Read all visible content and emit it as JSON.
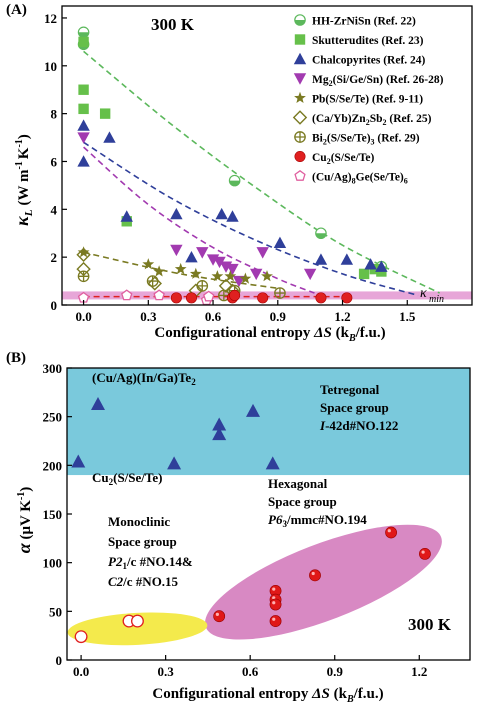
{
  "figure": {
    "panelA": {
      "label": "(A)",
      "temperature": "300 K",
      "kmin_label": "κ",
      "kmin_sub": "min",
      "ylabel": "κ",
      "ylabel_sub": "L",
      "ylabel_unit": "(W m",
      "ylabel_exp1": "-1",
      "ylabel_mid": "K",
      "ylabel_exp2": "-1",
      "ylabel_close": ")",
      "xlabel_main": "Configurational entropy ",
      "xlabel_sym": "ΔS",
      "xlabel_open": " (k",
      "xlabel_sub": "B",
      "xlabel_close": "/f.u.)",
      "legend": [
        {
          "text": "HH-ZrNiSn (Ref. 22)",
          "marker": "halfcircle",
          "color": "#5cb85c"
        },
        {
          "text": "Skutterudites (Ref. 23)",
          "marker": "square",
          "color": "#66c04a"
        },
        {
          "text": "Chalcopyrites (Ref. 24)",
          "marker": "triangle",
          "color": "#2f3f9a"
        },
        {
          "text_parts": [
            "Mg",
            "2",
            "(Si/Ge/Sn) (Ref. 26-28)"
          ],
          "marker": "invtriangle",
          "color": "#a23ab0"
        },
        {
          "text": "Pb(S/Se/Te) (Ref. 9-11)",
          "marker": "star",
          "color": "#7a7a22"
        },
        {
          "text_parts": [
            "(Ca/Yb)Zn",
            "2",
            "Sb",
            "2",
            " (Ref. 25)"
          ],
          "marker": "diamond",
          "color": "#7a7a22"
        },
        {
          "text_parts": [
            "Bi",
            "2",
            "(S/Se/Te)",
            "3",
            " (Ref. 29)"
          ],
          "marker": "crosscircle",
          "color": "#7a7a22"
        },
        {
          "text_parts": [
            "Cu",
            "2",
            "(S/Se/Te)"
          ],
          "marker": "circle",
          "color": "#e02020"
        },
        {
          "text_parts": [
            "(Cu/Ag)",
            "8",
            "Ge(Se/Te)",
            "6"
          ],
          "marker": "pentagon",
          "color": "#e060a0"
        }
      ]
    },
    "panelB": {
      "label": "(B)",
      "temperature": "300 K",
      "ylabel_sym": "α",
      "ylabel_unit": " (μV K",
      "ylabel_exp": "-1",
      "ylabel_close": ")",
      "xlabel_main": "Configurational entropy ",
      "xlabel_sym": "ΔS",
      "xlabel_open": " (k",
      "xlabel_sub": "B",
      "xlabel_close": "/f.u.)",
      "compound_top_parts": [
        "(Cu/Ag)(In/Ga)Te",
        "2"
      ],
      "compound_mid_parts": [
        "Cu",
        "2",
        "(S/Se/Te)"
      ],
      "tetragonal": [
        "Tetregonal",
        "Space group",
        "I",
        "-42d#NO.122"
      ],
      "hexagonal": [
        "Hexagonal",
        "Space group",
        "P6",
        "3",
        "/mmc#NO.194"
      ],
      "monoclinic": [
        "Monoclinic",
        "Space group",
        "P2",
        "1",
        "/c #NO.14&",
        "C2",
        "/c #NO.15"
      ]
    }
  },
  "chart_data": [
    {
      "type": "scatter",
      "title": "300 K",
      "xlabel": "Configurational entropy ΔS (kB/f.u.)",
      "ylabel": "κL (W m-1 K-1)",
      "xlim": [
        -0.1,
        1.8
      ],
      "ylim": [
        0,
        12.5
      ],
      "xticks": [
        0.0,
        0.3,
        0.6,
        0.9,
        1.2,
        1.5
      ],
      "yticks": [
        0,
        2,
        4,
        6,
        8,
        10,
        12
      ],
      "kmin": 0.4,
      "series": [
        {
          "name": "HH-ZrNiSn (Ref. 22)",
          "points": [
            [
              0.0,
              11.4
            ],
            [
              0.0,
              10.9
            ],
            [
              0.7,
              5.2
            ],
            [
              1.1,
              3.0
            ],
            [
              1.38,
              1.6
            ]
          ]
        },
        {
          "name": "Skutterudites (Ref. 23)",
          "points": [
            [
              0.0,
              11.0
            ],
            [
              0.0,
              9.0
            ],
            [
              0.0,
              8.2
            ],
            [
              0.1,
              8.0
            ],
            [
              0.2,
              3.5
            ],
            [
              1.3,
              1.3
            ],
            [
              1.35,
              1.5
            ],
            [
              1.38,
              1.4
            ]
          ]
        },
        {
          "name": "Chalcopyrites (Ref. 24)",
          "points": [
            [
              0.0,
              7.5
            ],
            [
              0.0,
              6.0
            ],
            [
              0.12,
              7.0
            ],
            [
              0.2,
              3.7
            ],
            [
              0.43,
              3.8
            ],
            [
              0.5,
              2.0
            ],
            [
              0.64,
              3.8
            ],
            [
              0.69,
              3.7
            ],
            [
              0.91,
              2.6
            ],
            [
              1.1,
              1.9
            ],
            [
              1.22,
              1.9
            ],
            [
              1.33,
              1.7
            ],
            [
              1.38,
              1.6
            ]
          ]
        },
        {
          "name": "Mg2(Si/Ge/Sn) (Ref. 26-28)",
          "points": [
            [
              0.0,
              7.0
            ],
            [
              0.43,
              2.3
            ],
            [
              0.55,
              2.2
            ],
            [
              0.6,
              1.9
            ],
            [
              0.63,
              1.8
            ],
            [
              0.66,
              1.6
            ],
            [
              0.69,
              1.5
            ],
            [
              0.72,
              1.0
            ],
            [
              0.8,
              1.3
            ],
            [
              0.83,
              2.2
            ],
            [
              1.05,
              1.3
            ]
          ]
        },
        {
          "name": "Pb(S/Se/Te) (Ref. 9-11)",
          "points": [
            [
              0.0,
              2.2
            ],
            [
              0.3,
              1.7
            ],
            [
              0.35,
              1.4
            ],
            [
              0.45,
              1.5
            ],
            [
              0.52,
              1.3
            ],
            [
              0.62,
              1.2
            ],
            [
              0.68,
              1.2
            ],
            [
              0.75,
              1.1
            ],
            [
              0.85,
              1.2
            ]
          ]
        },
        {
          "name": "(Ca/Yb)Zn2Sb2 (Ref. 25)",
          "points": [
            [
              0.0,
              2.1
            ],
            [
              0.0,
              1.5
            ],
            [
              0.33,
              0.9
            ],
            [
              0.52,
              0.6
            ],
            [
              0.66,
              0.8
            ],
            [
              0.69,
              0.6
            ]
          ]
        },
        {
          "name": "Bi2(S/Se/Te)3 (Ref. 29)",
          "points": [
            [
              0.0,
              1.2
            ],
            [
              0.32,
              1.0
            ],
            [
              0.55,
              0.8
            ],
            [
              0.65,
              0.4
            ],
            [
              0.7,
              0.6
            ],
            [
              0.91,
              0.5
            ]
          ]
        },
        {
          "name": "Cu2(S/Se/Te)",
          "points": [
            [
              0.43,
              0.3
            ],
            [
              0.5,
              0.3
            ],
            [
              0.69,
              0.3
            ],
            [
              0.7,
              0.4
            ],
            [
              0.83,
              0.3
            ],
            [
              1.1,
              0.3
            ],
            [
              1.22,
              0.3
            ]
          ]
        },
        {
          "name": "(Cu/Ag)8Ge(Se/Te)6",
          "points": [
            [
              0.0,
              0.3
            ],
            [
              0.2,
              0.4
            ],
            [
              0.35,
              0.4
            ],
            [
              0.57,
              0.2
            ],
            [
              0.58,
              0.35
            ]
          ]
        }
      ],
      "fits": [
        {
          "series": "HH-ZrNiSn (Ref. 22)",
          "points": [
            [
              0.0,
              10.6
            ],
            [
              0.4,
              7.6
            ],
            [
              0.8,
              4.9
            ],
            [
              1.2,
              2.5
            ],
            [
              1.65,
              0.5
            ]
          ]
        },
        {
          "series": "Chalcopyrites (Ref. 24)",
          "points": [
            [
              0.0,
              6.8
            ],
            [
              0.4,
              4.5
            ],
            [
              0.8,
              2.7
            ],
            [
              1.2,
              1.3
            ],
            [
              1.55,
              0.4
            ]
          ]
        },
        {
          "series": "Mg2(Si/Ge/Sn) (Ref. 26-28)",
          "points": [
            [
              0.0,
              6.6
            ],
            [
              0.3,
              4.2
            ],
            [
              0.6,
              2.4
            ],
            [
              0.9,
              1.1
            ],
            [
              1.07,
              0.5
            ]
          ]
        },
        {
          "series": "Pb(S/Se/Te) (Ref. 9-11)",
          "points": [
            [
              0.0,
              2.2
            ],
            [
              0.45,
              1.3
            ],
            [
              0.9,
              0.7
            ]
          ]
        },
        {
          "series": "Cu2(S/Se/Te)",
          "points": [
            [
              0.0,
              0.35
            ],
            [
              1.25,
              0.35
            ]
          ]
        }
      ]
    },
    {
      "type": "scatter",
      "title": "300 K",
      "xlabel": "Configurational entropy ΔS (kB/f.u.)",
      "ylabel": "α (μV K-1)",
      "xlim": [
        -0.05,
        1.38
      ],
      "ylim": [
        0,
        300
      ],
      "xticks": [
        0.0,
        0.3,
        0.6,
        0.9,
        1.2
      ],
      "yticks": [
        0,
        50,
        100,
        150,
        200,
        250,
        300
      ],
      "regions": [
        {
          "name": "Tetregonal",
          "x": [
            -0.05,
            1.38
          ],
          "y": [
            190,
            300
          ],
          "color": "#7ac9dc"
        },
        {
          "name": "Hexagonal",
          "color": "#d889c3"
        },
        {
          "name": "Monoclinic",
          "color": "#f4ea4c"
        }
      ],
      "series": [
        {
          "name": "(Cu/Ag)(In/Ga)Te2",
          "points": [
            [
              -0.01,
              204
            ],
            [
              0.06,
              263
            ],
            [
              0.33,
              202
            ],
            [
              0.49,
              242
            ],
            [
              0.49,
              232
            ],
            [
              0.61,
              256
            ],
            [
              0.68,
              202
            ]
          ]
        },
        {
          "name": "Cu2(S/Se/Te) hexagonal",
          "points": [
            [
              0.49,
              45
            ],
            [
              0.69,
              71
            ],
            [
              0.69,
              62
            ],
            [
              0.69,
              57
            ],
            [
              0.69,
              40
            ],
            [
              0.83,
              87
            ],
            [
              1.1,
              131
            ],
            [
              1.22,
              109
            ]
          ]
        },
        {
          "name": "Cu2(S/Se/Te) monoclinic",
          "points": [
            [
              0.0,
              24
            ],
            [
              0.17,
              40
            ],
            [
              0.2,
              40
            ]
          ]
        }
      ]
    }
  ]
}
